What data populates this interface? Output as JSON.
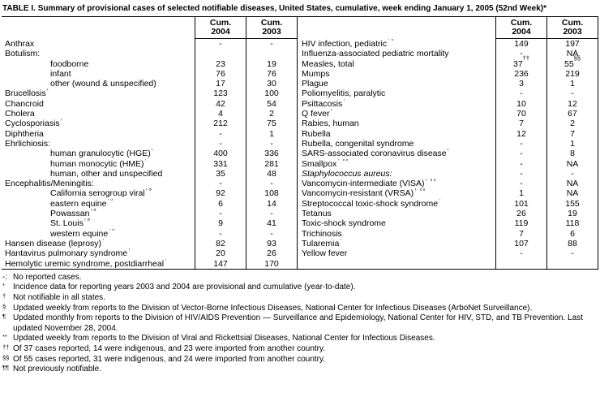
{
  "title": "TABLE I. Summary of provisional cases of selected notifiable diseases, United States, cumulative, week ending January 1, 2005 (52nd Week)*",
  "colors": {
    "text": "#000000",
    "background": "#ffffff",
    "rule": "#000000"
  },
  "table": {
    "col_header": {
      "cum": "Cum.",
      "y2004": "2004",
      "y2003": "2003"
    },
    "left_rows": [
      {
        "name": "Anthrax",
        "v2004": "-",
        "v2003": "-"
      },
      {
        "name": "Botulism:",
        "v2004": "",
        "v2003": ""
      },
      {
        "name": "foodborne",
        "indent": 1,
        "v2004": "23",
        "v2003": "19"
      },
      {
        "name": "infant",
        "indent": 1,
        "v2004": "76",
        "v2003": "76"
      },
      {
        "name": "other (wound & unspecified)",
        "indent": 1,
        "v2004": "17",
        "v2003": "30"
      },
      {
        "name": "Brucellosis†",
        "v2004": "123",
        "v2003": "100"
      },
      {
        "name": "Chancroid",
        "v2004": "42",
        "v2003": "54"
      },
      {
        "name": "Cholera",
        "v2004": "4",
        "v2003": "2"
      },
      {
        "name": "Cyclosporiasis†",
        "v2004": "212",
        "v2003": "75"
      },
      {
        "name": "Diphtheria",
        "v2004": "-",
        "v2003": "1"
      },
      {
        "name": "Ehrlichiosis:",
        "v2004": "-",
        "v2003": "-"
      },
      {
        "name": "human granulocytic (HGE)†",
        "indent": 1,
        "v2004": "400",
        "v2003": "336"
      },
      {
        "name": "human monocytic (HME)†",
        "indent": 1,
        "v2004": "331",
        "v2003": "281"
      },
      {
        "name": "human, other and unspecified",
        "indent": 1,
        "v2004": "35",
        "v2003": "48"
      },
      {
        "name": "Encephalitis/Meningitis:",
        "v2004": "-",
        "v2003": "-"
      },
      {
        "name": "California serogroup viral†§",
        "indent": 1,
        "v2004": "92",
        "v2003": "108"
      },
      {
        "name": "eastern equine†§",
        "indent": 1,
        "v2004": "6",
        "v2003": "14"
      },
      {
        "name": "Powassan†§",
        "indent": 1,
        "v2004": "-",
        "v2003": "-"
      },
      {
        "name": "St. Louis†§",
        "indent": 1,
        "v2004": "9",
        "v2003": "41"
      },
      {
        "name": "western equine†§",
        "indent": 1,
        "v2004": "-",
        "v2003": "-"
      },
      {
        "name": "Hansen disease (leprosy)†",
        "v2004": "82",
        "v2003": "93"
      },
      {
        "name": "Hantavirus pulmonary syndrome†",
        "v2004": "20",
        "v2003": "26"
      },
      {
        "name": "Hemolytic uremic syndrome, postdiarrheal†",
        "v2004": "147",
        "v2003": "170"
      }
    ],
    "right_rows": [
      {
        "name": "HIV infection, pediatric†¶",
        "v2004": "149",
        "v2003": "197"
      },
      {
        "name": "Influenza-associated pediatric mortality**",
        "v2004": "-",
        "v2003": "NA"
      },
      {
        "name": "Measles, total",
        "v2004": "37††",
        "v2003": "55§§"
      },
      {
        "name": "Mumps",
        "v2004": "236",
        "v2003": "219"
      },
      {
        "name": "Plague",
        "v2004": "3",
        "v2003": "1"
      },
      {
        "name": "Poliomyelitis, paralytic",
        "v2004": "-",
        "v2003": "-"
      },
      {
        "name": "Psittacosis†",
        "v2004": "10",
        "v2003": "12"
      },
      {
        "name": "Q fever†",
        "v2004": "70",
        "v2003": "67"
      },
      {
        "name": "Rabies, human",
        "v2004": "7",
        "v2003": "2"
      },
      {
        "name": "Rubella",
        "v2004": "12",
        "v2003": "7"
      },
      {
        "name": "Rubella, congenital syndrome",
        "v2004": "-",
        "v2003": "1"
      },
      {
        "name": "SARS-associated coronavirus disease† **",
        "v2004": "-",
        "v2003": "8"
      },
      {
        "name": "Smallpox† ¶¶",
        "v2004": "-",
        "v2003": "NA"
      },
      {
        "name": "Staphylococcus aureus:",
        "italic": true,
        "v2004": "-",
        "v2003": "-"
      },
      {
        "name": "Vancomycin-intermediate (VISA)† ¶¶",
        "indent": 1,
        "v2004": "-",
        "v2003": "NA"
      },
      {
        "name": "Vancomycin-resistant (VRSA)† ¶¶",
        "indent": 1,
        "v2004": "1",
        "v2003": "NA"
      },
      {
        "name": "Streptococcal toxic-shock syndrome†",
        "v2004": "101",
        "v2003": "155"
      },
      {
        "name": "Tetanus",
        "v2004": "26",
        "v2003": "19"
      },
      {
        "name": "Toxic-shock syndrome",
        "v2004": "119",
        "v2003": "118"
      },
      {
        "name": "Trichinosis",
        "v2004": "7",
        "v2003": "6"
      },
      {
        "name": "Tularemia†",
        "v2004": "107",
        "v2003": "88"
      },
      {
        "name": "Yellow fever",
        "v2004": "-",
        "v2003": "-"
      },
      {
        "name": "",
        "v2004": "",
        "v2003": ""
      }
    ]
  },
  "footnotes": [
    {
      "marker": "-:",
      "sup": false,
      "text": "No reported cases."
    },
    {
      "marker": "*",
      "sup": true,
      "text": "Incidence data for reporting years 2003 and 2004 are provisional and cumulative (year-to-date)."
    },
    {
      "marker": "†",
      "sup": true,
      "text": "Not notifiable in all states."
    },
    {
      "marker": "§",
      "sup": true,
      "text": "Updated weekly from reports to the Division of Vector-Borne Infectious Diseases, National Center for Infectious Diseases (ArboNet Surveillance)."
    },
    {
      "marker": "¶",
      "sup": true,
      "text": "Updated monthly from reports to the Division of HIV/AIDS Prevention — Surveillance and Epidemiology, National Center for HIV, STD, and TB Prevention. Last updated November 28, 2004."
    },
    {
      "marker": "**",
      "sup": true,
      "text": "Updated weekly from reports to the Division of Viral and Rickettsial Diseases, National Center for Infectious Diseases."
    },
    {
      "marker": "††",
      "sup": true,
      "text": "Of 37 cases reported, 14 were indigenous, and 23 were imported from another country."
    },
    {
      "marker": "§§",
      "sup": true,
      "text": "Of 55 cases reported, 31 were indigenous, and 24 were imported from another country."
    },
    {
      "marker": "¶¶",
      "sup": true,
      "text": "Not previously notifiable."
    }
  ]
}
